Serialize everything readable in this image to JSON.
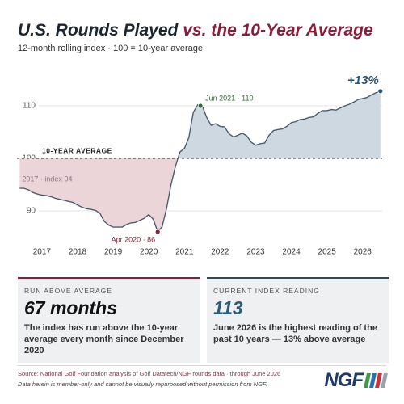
{
  "chart_data": {
    "type": "line",
    "title_parts": [
      "U.S. Rounds Played",
      "vs. the 10-Year Average"
    ],
    "subtitle": "12-month rolling index · 100 = 10-year average",
    "x": [
      2016.375,
      2016.5,
      2016.625,
      2016.75,
      2016.875,
      2017.0,
      2017.125,
      2017.25,
      2017.375,
      2017.5,
      2017.625,
      2017.75,
      2017.875,
      2018.0,
      2018.125,
      2018.25,
      2018.375,
      2018.5,
      2018.625,
      2018.75,
      2018.875,
      2019.0,
      2019.125,
      2019.25,
      2019.375,
      2019.5,
      2019.625,
      2019.75,
      2019.875,
      2020.0,
      2020.125,
      2020.25,
      2020.375,
      2020.5,
      2020.625,
      2020.75,
      2020.875,
      2021.0,
      2021.125,
      2021.25,
      2021.375,
      2021.5,
      2021.625,
      2021.75,
      2021.875,
      2022.0,
      2022.125,
      2022.25,
      2022.375,
      2022.5,
      2022.625,
      2022.75,
      2022.875,
      2023.0,
      2023.125,
      2023.25,
      2023.375,
      2023.5,
      2023.625,
      2023.75,
      2023.875,
      2024.0,
      2024.125,
      2024.25,
      2024.375,
      2024.5,
      2024.625,
      2024.75,
      2024.875,
      2025.0,
      2025.125,
      2025.25,
      2025.375,
      2025.5,
      2025.625,
      2025.75,
      2025.875,
      2026.0,
      2026.125,
      2026.25,
      2026.375,
      2026.5
    ],
    "values": [
      94.3,
      94.3,
      94.0,
      93.5,
      93.2,
      93.0,
      92.9,
      92.7,
      92.4,
      92.2,
      92.0,
      91.8,
      91.6,
      91.1,
      90.7,
      90.4,
      90.3,
      90.1,
      89.6,
      88.0,
      87.3,
      86.9,
      86.9,
      86.9,
      87.4,
      87.7,
      87.8,
      88.2,
      88.6,
      89.3,
      88.4,
      86.0,
      87.0,
      90.5,
      95.0,
      98.5,
      101.2,
      101.9,
      104.0,
      108.8,
      110.2,
      110.0,
      107.8,
      106.3,
      106.6,
      106.1,
      106.0,
      104.7,
      104.1,
      104.4,
      104.8,
      104.3,
      103.1,
      102.5,
      102.8,
      102.9,
      104.4,
      105.3,
      105.5,
      105.6,
      106.1,
      106.8,
      107.0,
      107.4,
      107.5,
      107.8,
      107.9,
      108.6,
      109.1,
      109.1,
      109.3,
      109.2,
      109.6,
      110.0,
      110.3,
      110.7,
      111.2,
      111.4,
      111.6,
      112.1,
      112.5,
      112.8
    ],
    "color": "#4b5d6e",
    "above_color": "#cdd8e0",
    "below_color": "#ecd5d9",
    "xlim": [
      2016.3,
      2026.55
    ],
    "xticks": [
      2017,
      2018,
      2019,
      2020,
      2021,
      2022,
      2023,
      2024,
      2025,
      2026
    ],
    "ylim": [
      84,
      116
    ],
    "yticks": [
      90,
      100,
      110
    ],
    "grid": true,
    "reference": {
      "value": 100,
      "label": "10-YEAR AVERAGE"
    },
    "annotations": [
      {
        "text": "2017 · index 94",
        "x": 2016.4,
        "y": 94.3,
        "color": "#8c7b82"
      },
      {
        "text": "Apr 2020 · 86",
        "x": 2020.25,
        "y": 86,
        "color": "#8b1c3a"
      },
      {
        "text": "Jun 2021 · 110",
        "x": 2021.45,
        "y": 110,
        "color": "#2f6b34"
      },
      {
        "text": "+13%",
        "x": 2026.5,
        "y": 112.8,
        "color": "#2b5575"
      }
    ]
  },
  "stats": [
    {
      "label": "RUN ABOVE AVERAGE",
      "value": "67 months",
      "text": "The index has run above the 10-year average every month since December 2020"
    },
    {
      "label": "CURRENT INDEX READING",
      "value": "113",
      "text": "June 2026 is the highest reading of the past 10 years — 13% above average"
    }
  ],
  "footer": {
    "source": "Source: National Golf Foundation analysis of Golf Datatech/NGF rounds data · through June 2026",
    "note": "Data herein is member-only and cannot be visually repurposed without permission from NGF.",
    "logo": "NGF"
  }
}
